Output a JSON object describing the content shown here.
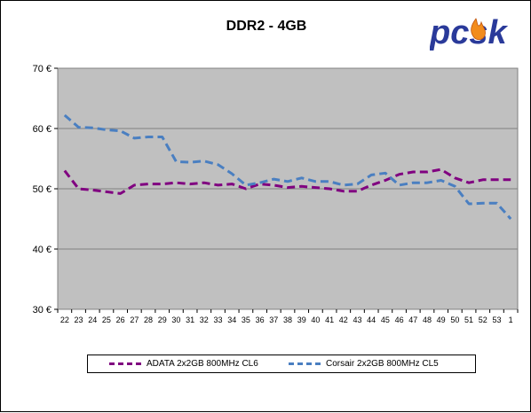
{
  "logo_text": "pcsk",
  "colors": {
    "plot_bg": "#c0c0c0",
    "grid": "#808080",
    "adata": "#800080",
    "corsair": "#4a7fc1",
    "logo_blue": "#2a3a9a",
    "logo_flame": "#f28c1c"
  },
  "chart_data": {
    "type": "line",
    "title": "DDR2 - 4GB",
    "categories": [
      "22",
      "23",
      "24",
      "25",
      "26",
      "27",
      "28",
      "29",
      "30",
      "31",
      "32",
      "33",
      "34",
      "35",
      "36",
      "37",
      "38",
      "39",
      "40",
      "41",
      "42",
      "43",
      "44",
      "45",
      "46",
      "47",
      "48",
      "49",
      "50",
      "51",
      "52",
      "53",
      "1"
    ],
    "series": [
      {
        "name": "ADATA 2x2GB 800MHz CL6",
        "values": [
          53.0,
          50.0,
          49.8,
          49.5,
          49.2,
          50.6,
          50.8,
          50.8,
          51.0,
          50.8,
          51.0,
          50.6,
          50.8,
          50.0,
          50.8,
          50.6,
          50.2,
          50.4,
          50.2,
          50.0,
          49.6,
          49.6,
          50.6,
          51.4,
          52.4,
          52.8,
          52.8,
          53.2,
          51.8,
          51.0,
          51.5,
          51.5,
          51.5
        ]
      },
      {
        "name": "Corsair 2x2GB 800MHz CL5",
        "values": [
          62.2,
          60.2,
          60.1,
          59.8,
          59.6,
          58.4,
          58.6,
          58.6,
          54.5,
          54.4,
          54.6,
          54.0,
          52.5,
          50.6,
          51.0,
          51.6,
          51.2,
          51.8,
          51.2,
          51.2,
          50.6,
          50.8,
          52.3,
          52.6,
          50.6,
          51.0,
          51.0,
          51.4,
          50.4,
          47.5,
          47.6,
          47.6,
          45.0
        ]
      }
    ],
    "ylim": [
      30,
      70
    ],
    "yticks": [
      30,
      40,
      50,
      60,
      70
    ],
    "ytick_labels": [
      "30 €",
      "40 €",
      "50 €",
      "60 €",
      "70 €"
    ],
    "grid": true,
    "legend": "bottom"
  }
}
